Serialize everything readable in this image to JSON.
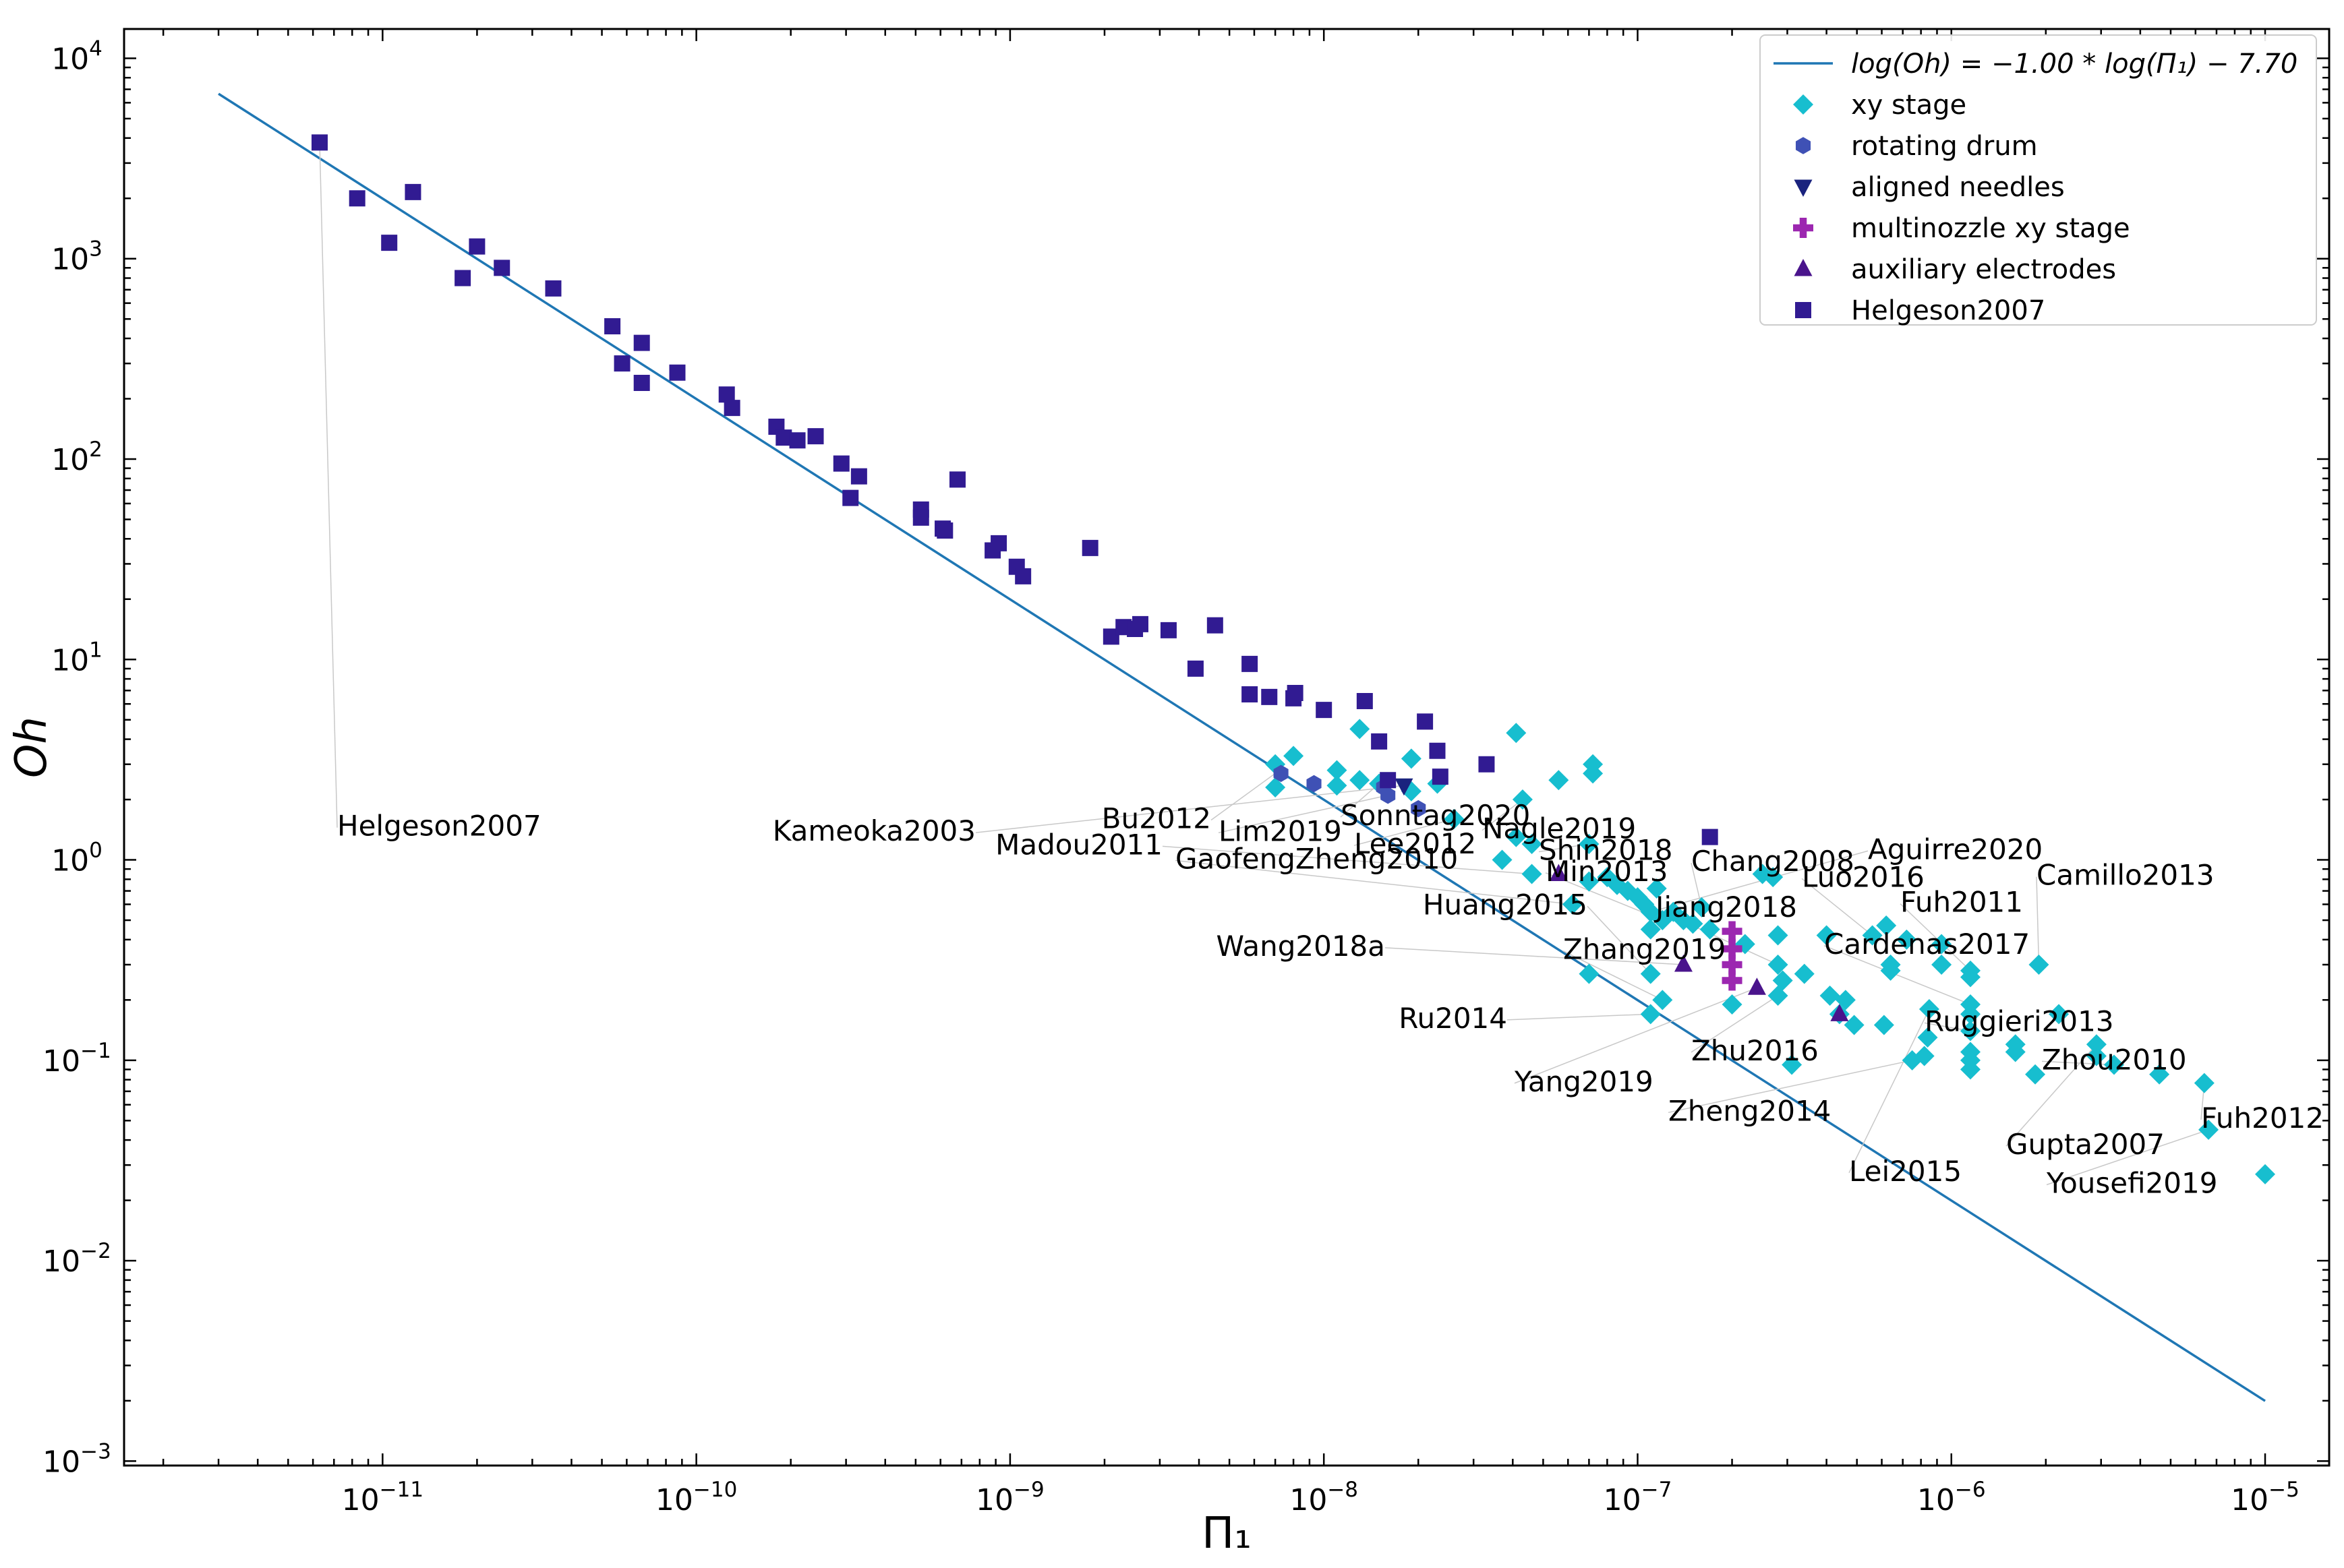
{
  "chart_data": {
    "type": "scatter",
    "xlabel": "Π₁",
    "ylabel": "Oh",
    "xscale": "log",
    "yscale": "log",
    "xlim": [
      1.5e-12,
      1.6e-05
    ],
    "ylim": [
      0.00095,
      14000
    ],
    "xticks": [
      {
        "value": 1e-11,
        "base": "10",
        "exp": "−11"
      },
      {
        "value": 1e-10,
        "base": "10",
        "exp": "−10"
      },
      {
        "value": 1e-09,
        "base": "10",
        "exp": "−9"
      },
      {
        "value": 1e-08,
        "base": "10",
        "exp": "−8"
      },
      {
        "value": 1e-07,
        "base": "10",
        "exp": "−7"
      },
      {
        "value": 1e-06,
        "base": "10",
        "exp": "−6"
      },
      {
        "value": 1e-05,
        "base": "10",
        "exp": "−5"
      }
    ],
    "yticks": [
      {
        "value": 0.001,
        "base": "10",
        "exp": "−3"
      },
      {
        "value": 0.01,
        "base": "10",
        "exp": "−2"
      },
      {
        "value": 0.1,
        "base": "10",
        "exp": "−1"
      },
      {
        "value": 1,
        "base": "10",
        "exp": "0"
      },
      {
        "value": 10,
        "base": "10",
        "exp": "1"
      },
      {
        "value": 100,
        "base": "10",
        "exp": "2"
      },
      {
        "value": 1000,
        "base": "10",
        "exp": "3"
      },
      {
        "value": 10000,
        "base": "10",
        "exp": "4"
      }
    ],
    "grid": false,
    "legend_position": "top-right",
    "fit_line": {
      "label": "log(Oh) = −1.00 * log(Π₁) − 7.70",
      "slope": -1.0,
      "intercept": -7.7,
      "x_range": [
        3e-12,
        1e-05
      ],
      "color": "#1f77b4"
    },
    "series": [
      {
        "name": "xy stage",
        "marker": "diamond",
        "color": "#17becf",
        "points": [
          [
            7e-09,
            3.0
          ],
          [
            8e-09,
            3.3
          ],
          [
            7e-09,
            2.3
          ],
          [
            1.1e-08,
            2.8
          ],
          [
            1.1e-08,
            2.35
          ],
          [
            1.3e-08,
            4.5
          ],
          [
            1.3e-08,
            2.5
          ],
          [
            1.5e-08,
            2.4
          ],
          [
            1.9e-08,
            3.2
          ],
          [
            1.9e-08,
            2.2
          ],
          [
            2.3e-08,
            2.4
          ],
          [
            2.6e-08,
            1.6
          ],
          [
            3.7e-08,
            1.0
          ],
          [
            4.1e-08,
            4.3
          ],
          [
            4.3e-08,
            2.0
          ],
          [
            4.1e-08,
            1.3
          ],
          [
            4.6e-08,
            1.2
          ],
          [
            4.6e-08,
            0.85
          ],
          [
            5.6e-08,
            2.5
          ],
          [
            7e-08,
            1.2
          ],
          [
            7.2e-08,
            3.0
          ],
          [
            7.2e-08,
            2.7
          ],
          [
            6.2e-08,
            0.6
          ],
          [
            7e-08,
            0.78
          ],
          [
            8e-08,
            0.82
          ],
          [
            8.6e-08,
            0.75
          ],
          [
            9.3e-08,
            0.7
          ],
          [
            1e-07,
            0.65
          ],
          [
            1.05e-07,
            0.6
          ],
          [
            1.1e-07,
            0.55
          ],
          [
            1.15e-07,
            0.72
          ],
          [
            1.2e-07,
            0.5
          ],
          [
            1.3e-07,
            0.55
          ],
          [
            1.4e-07,
            0.5
          ],
          [
            1.5e-07,
            0.48
          ],
          [
            1.6e-07,
            0.58
          ],
          [
            1.7e-07,
            0.45
          ],
          [
            1.1e-07,
            0.45
          ],
          [
            7e-08,
            0.27
          ],
          [
            1.1e-07,
            0.27
          ],
          [
            1.1e-07,
            0.17
          ],
          [
            1.2e-07,
            0.2
          ],
          [
            2e-07,
            0.19
          ],
          [
            2.2e-07,
            0.38
          ],
          [
            2.5e-07,
            0.85
          ],
          [
            2.7e-07,
            0.82
          ],
          [
            2.8e-07,
            0.42
          ],
          [
            2.8e-07,
            0.3
          ],
          [
            2.9e-07,
            0.25
          ],
          [
            2.8e-07,
            0.21
          ],
          [
            3.4e-07,
            0.27
          ],
          [
            4e-07,
            0.42
          ],
          [
            4.1e-07,
            0.21
          ],
          [
            4.4e-07,
            0.17
          ],
          [
            4.6e-07,
            0.2
          ],
          [
            4.9e-07,
            0.15
          ],
          [
            5.6e-07,
            0.42
          ],
          [
            6.2e-07,
            0.47
          ],
          [
            6.4e-07,
            0.3
          ],
          [
            6.4e-07,
            0.28
          ],
          [
            7.2e-07,
            0.4
          ],
          [
            6.1e-07,
            0.15
          ],
          [
            8.5e-07,
            0.18
          ],
          [
            8.4e-07,
            0.13
          ],
          [
            9.3e-07,
            0.3
          ],
          [
            9.3e-07,
            0.38
          ],
          [
            1.15e-06,
            0.28
          ],
          [
            1.15e-06,
            0.26
          ],
          [
            1.15e-06,
            0.19
          ],
          [
            1.15e-06,
            0.17
          ],
          [
            1.15e-06,
            0.14
          ],
          [
            1.15e-06,
            0.11
          ],
          [
            1.15e-06,
            0.1
          ],
          [
            1.15e-06,
            0.09
          ],
          [
            1.6e-06,
            0.12
          ],
          [
            1.6e-06,
            0.11
          ],
          [
            1.85e-06,
            0.085
          ],
          [
            1.9e-06,
            0.3
          ],
          [
            2.2e-06,
            0.17
          ],
          [
            2.9e-06,
            0.12
          ],
          [
            2.9e-06,
            0.105
          ],
          [
            3.3e-06,
            0.095
          ],
          [
            4.6e-06,
            0.085
          ],
          [
            7.5e-07,
            0.1
          ],
          [
            8.2e-07,
            0.105
          ],
          [
            3.1e-07,
            0.095
          ],
          [
            6.4e-06,
            0.077
          ],
          [
            6.6e-06,
            0.045
          ],
          [
            1e-05,
            0.027
          ]
        ]
      },
      {
        "name": "rotating drum",
        "marker": "hexagon",
        "color": "#3f51b5",
        "points": [
          [
            7.3e-09,
            2.7
          ],
          [
            9.3e-09,
            2.4
          ],
          [
            1.55e-08,
            2.3
          ],
          [
            1.6e-08,
            2.1
          ],
          [
            2e-08,
            1.8
          ]
        ]
      },
      {
        "name": "aligned needles",
        "marker": "triangle-down",
        "color": "#1a237e",
        "points": [
          [
            1.8e-08,
            2.35
          ]
        ]
      },
      {
        "name": "multinozzle xy stage",
        "marker": "plus",
        "color": "#9c27b0",
        "points": [
          [
            2e-07,
            0.44
          ],
          [
            2e-07,
            0.36
          ],
          [
            2e-07,
            0.3
          ],
          [
            2e-07,
            0.25
          ]
        ]
      },
      {
        "name": "auxiliary electrodes",
        "marker": "triangle-up",
        "color": "#4a148c",
        "points": [
          [
            5.6e-08,
            0.85
          ],
          [
            1.4e-07,
            0.3
          ],
          [
            2.4e-07,
            0.23
          ],
          [
            4.4e-07,
            0.17
          ]
        ]
      },
      {
        "name": "Helgeson2007",
        "marker": "square",
        "color": "#311b92",
        "points": [
          [
            6.3e-12,
            3800
          ],
          [
            8.3e-12,
            2000
          ],
          [
            1.05e-11,
            1200
          ],
          [
            1.25e-11,
            2150
          ],
          [
            1.8e-11,
            800
          ],
          [
            2e-11,
            1150
          ],
          [
            2.4e-11,
            900
          ],
          [
            3.5e-11,
            710
          ],
          [
            5.4e-11,
            460
          ],
          [
            5.8e-11,
            300
          ],
          [
            6.7e-11,
            380
          ],
          [
            6.7e-11,
            240
          ],
          [
            8.7e-11,
            270
          ],
          [
            1.25e-10,
            210
          ],
          [
            1.3e-10,
            180
          ],
          [
            1.8e-10,
            145
          ],
          [
            1.9e-10,
            128
          ],
          [
            2.1e-10,
            124
          ],
          [
            2.4e-10,
            130
          ],
          [
            2.9e-10,
            95
          ],
          [
            3.1e-10,
            64
          ],
          [
            3.3e-10,
            82
          ],
          [
            5.2e-10,
            56
          ],
          [
            5.2e-10,
            51
          ],
          [
            6.1e-10,
            45
          ],
          [
            6.2e-10,
            44
          ],
          [
            6.8e-10,
            79
          ],
          [
            8.8e-10,
            35
          ],
          [
            9.2e-10,
            38
          ],
          [
            1.05e-09,
            29
          ],
          [
            1.1e-09,
            26
          ],
          [
            1.8e-09,
            36
          ],
          [
            2.1e-09,
            13
          ],
          [
            2.3e-09,
            14.5
          ],
          [
            2.5e-09,
            14.2
          ],
          [
            2.6e-09,
            15
          ],
          [
            3.2e-09,
            14
          ],
          [
            3.9e-09,
            9
          ],
          [
            4.5e-09,
            14.8
          ],
          [
            5.8e-09,
            9.5
          ],
          [
            5.8e-09,
            6.7
          ],
          [
            6.7e-09,
            6.5
          ],
          [
            8e-09,
            6.4
          ],
          [
            8.1e-09,
            6.8
          ],
          [
            1e-08,
            5.6
          ],
          [
            1.35e-08,
            6.2
          ],
          [
            1.5e-08,
            3.9
          ],
          [
            1.6e-08,
            2.5
          ],
          [
            2.1e-08,
            4.9
          ],
          [
            2.3e-08,
            3.5
          ],
          [
            2.35e-08,
            2.6
          ],
          [
            3.3e-08,
            3.0
          ],
          [
            1.7e-07,
            1.3
          ]
        ]
      }
    ],
    "annotations": [
      {
        "text": "Helgeson2007",
        "x": 6.3e-12,
        "y": 3800
      },
      {
        "text": "Bu2012",
        "x": 7e-09,
        "y": 2.7
      },
      {
        "text": "Sonntag2020",
        "x": 1.5e-08,
        "y": 2.4
      },
      {
        "text": "Kameoka2003",
        "x": 1.8e-08,
        "y": 2.35
      },
      {
        "text": "Lim2019",
        "x": 1.6e-08,
        "y": 2.1
      },
      {
        "text": "Nagle2019",
        "x": 4.3e-08,
        "y": 2.0
      },
      {
        "text": "Lee2012",
        "x": 2.6e-08,
        "y": 1.6
      },
      {
        "text": "Madou2011",
        "x": 4.6e-08,
        "y": 0.85
      },
      {
        "text": "Shin2018",
        "x": 7e-08,
        "y": 1.2
      },
      {
        "text": "GaofengZheng2010",
        "x": 6.2e-08,
        "y": 0.6
      },
      {
        "text": "Aguirre2020",
        "x": 1.1e-07,
        "y": 0.55
      },
      {
        "text": "Chang2008",
        "x": 1.6e-07,
        "y": 0.58
      },
      {
        "text": "Min2013",
        "x": 1.2e-07,
        "y": 0.5
      },
      {
        "text": "Luo2016",
        "x": 5.6e-07,
        "y": 0.42
      },
      {
        "text": "Camillo2013",
        "x": 1.9e-06,
        "y": 0.3
      },
      {
        "text": "Huang2015",
        "x": 1.1e-07,
        "y": 0.27
      },
      {
        "text": "Jiang2018",
        "x": 2.8e-07,
        "y": 0.3
      },
      {
        "text": "Fuh2011",
        "x": 1.15e-06,
        "y": 0.28
      },
      {
        "text": "Wang2018a",
        "x": 1.4e-07,
        "y": 0.3
      },
      {
        "text": "Zhang2019",
        "x": 1.2e-07,
        "y": 0.2
      },
      {
        "text": "Cardenas2017",
        "x": 1.15e-06,
        "y": 0.19
      },
      {
        "text": "Ru2014",
        "x": 1.1e-07,
        "y": 0.17
      },
      {
        "text": "Ruggieri2013",
        "x": 1.15e-06,
        "y": 0.14
      },
      {
        "text": "Zhu2016",
        "x": 2.8e-07,
        "y": 0.21
      },
      {
        "text": "Yang2019",
        "x": 2.4e-07,
        "y": 0.23
      },
      {
        "text": "Zhou2010",
        "x": 3.3e-06,
        "y": 0.095
      },
      {
        "text": "Zheng2014",
        "x": 7.5e-07,
        "y": 0.1
      },
      {
        "text": "Fuh2012",
        "x": 6.4e-06,
        "y": 0.077
      },
      {
        "text": "Gupta2007",
        "x": 2.9e-06,
        "y": 0.12
      },
      {
        "text": "Lei2015",
        "x": 8.5e-07,
        "y": 0.18
      },
      {
        "text": "Yousefi2019",
        "x": 6.6e-06,
        "y": 0.045
      }
    ]
  }
}
